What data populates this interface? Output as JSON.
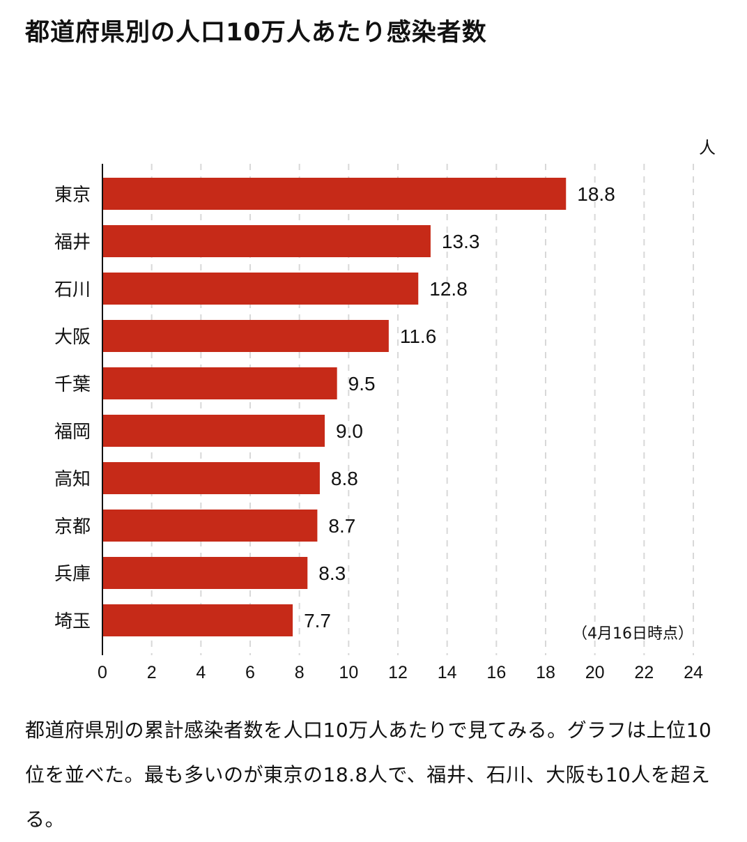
{
  "title": "都道府県別の人口10万人あたり感染者数",
  "chart_data": {
    "type": "bar",
    "orientation": "horizontal",
    "categories": [
      "東京",
      "福井",
      "石川",
      "大阪",
      "千葉",
      "福岡",
      "高知",
      "京都",
      "兵庫",
      "埼玉"
    ],
    "values": [
      18.8,
      13.3,
      12.8,
      11.6,
      9.5,
      9.0,
      8.8,
      8.7,
      8.3,
      7.7
    ],
    "value_labels": [
      "18.8",
      "13.3",
      "12.8",
      "11.6",
      "9.5",
      "9.0",
      "8.8",
      "8.7",
      "8.3",
      "7.7"
    ],
    "unit": "人",
    "note": "（4月16日時点）",
    "xlim": [
      0,
      24
    ],
    "xticks": [
      0,
      2,
      4,
      6,
      8,
      10,
      12,
      14,
      16,
      18,
      20,
      22,
      24
    ],
    "grid": true,
    "bar_color": "#c62a18"
  },
  "description": "都道府県別の累計感染者数を人口10万人あたりで見てみる。グラフは上位10位を並べた。最も多いのが東京の18.8人で、福井、石川、大阪も10人を超える。"
}
